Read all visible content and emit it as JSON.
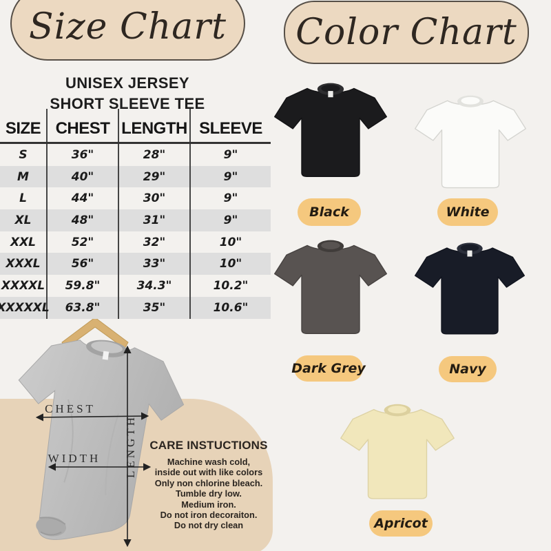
{
  "theme": {
    "page_bg": "#f3f1ee",
    "tan_pill": "#ecd9c1",
    "tan_pill_border": "#564f47",
    "tan_blob": "#e7d3b8",
    "label_pill": "#f5c87e",
    "row_shade": "#dedede",
    "line": "#444444",
    "text": "#1e1c1a",
    "script_text": "#2e2721"
  },
  "size_chart": {
    "title": "Size Chart",
    "product_line1": "UNISEX JERSEY",
    "product_line2": "SHORT SLEEVE TEE",
    "headers": [
      "SIZE",
      "CHEST",
      "LENGTH",
      "SLEEVE"
    ],
    "rows": [
      [
        "S",
        "36\"",
        "28\"",
        "9\""
      ],
      [
        "M",
        "40\"",
        "29\"",
        "9\""
      ],
      [
        "L",
        "44\"",
        "30\"",
        "9\""
      ],
      [
        "XL",
        "48\"",
        "31\"",
        "9\""
      ],
      [
        "XXL",
        "52\"",
        "32\"",
        "10\""
      ],
      [
        "XXXL",
        "56\"",
        "33\"",
        "10\""
      ],
      [
        "XXXXL",
        "59.8\"",
        "34.3\"",
        "10.2\""
      ],
      [
        "XXXXXL",
        "63.8\"",
        "35\"",
        "10.6\""
      ]
    ],
    "measure_labels": {
      "chest": "CHEST",
      "width": "WIDTH",
      "length": "LENGTH"
    }
  },
  "care": {
    "title": "CARE INSTUCTIONS",
    "lines": [
      "Machine wash cold,",
      "inside out with like colors",
      "Only non chlorine bleach.",
      "Tumble dry low.",
      "Medium iron.",
      "Do not iron decoraiton.",
      "Do not dry clean"
    ]
  },
  "color_chart": {
    "title": "Color Chart",
    "colors": [
      {
        "name": "Black",
        "hex": "#1b1b1d",
        "collar": "#2e2e30",
        "stroke": "#121214",
        "tag": true
      },
      {
        "name": "White",
        "hex": "#fbfbf9",
        "collar": "#e2e2de",
        "stroke": "#d4d4d0",
        "tag": false
      },
      {
        "name": "Dark Grey",
        "hex": "#585351",
        "collar": "#403c3a",
        "stroke": "#464240",
        "tag": false
      },
      {
        "name": "Navy",
        "hex": "#181c27",
        "collar": "#2b2f3b",
        "stroke": "#10141e",
        "tag": true
      },
      {
        "name": "Apricot",
        "hex": "#f1e7bb",
        "collar": "#dcd09e",
        "stroke": "#ddd2a4",
        "tag": false
      }
    ]
  }
}
